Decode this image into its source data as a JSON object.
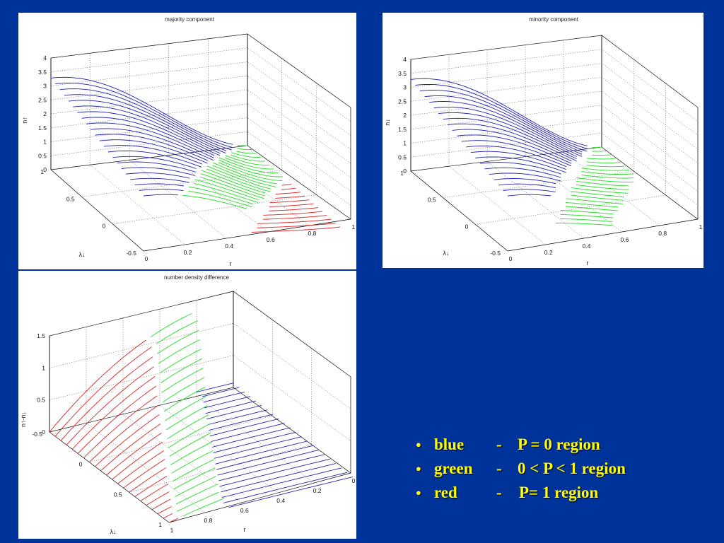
{
  "chart_data": [
    {
      "type": "surface-3d",
      "title": "majority component",
      "xlabel": "r",
      "ylabel": "λ↓",
      "zlabel": "n↑",
      "x_ticks": [
        "0",
        "0.2",
        "0.4",
        "0.6",
        "0.8",
        "1"
      ],
      "y_ticks": [
        "-0.5",
        "0",
        "0.5",
        "1"
      ],
      "z_ticks": [
        "0",
        "0.5",
        "1",
        "1.5",
        "2",
        "2.5",
        "3",
        "3.5",
        "4"
      ],
      "xlim": [
        0,
        1
      ],
      "ylim": [
        -0.5,
        1
      ],
      "zlim": [
        0,
        4
      ],
      "grid": true,
      "series": [
        {
          "region": "blue",
          "color": "#1f1fb8"
        },
        {
          "region": "green",
          "color": "#22dd22"
        },
        {
          "region": "red",
          "color": "#dd2222"
        }
      ]
    },
    {
      "type": "surface-3d",
      "title": "minority component",
      "xlabel": "r",
      "ylabel": "λ↓",
      "zlabel": "n↓",
      "x_ticks": [
        "0",
        "0.2",
        "0.4",
        "0.6",
        "0.8",
        "1"
      ],
      "y_ticks": [
        "-0.5",
        "0",
        "0.5",
        "1"
      ],
      "z_ticks": [
        "0",
        "0.5",
        "1",
        "1.5",
        "2",
        "2.5",
        "3",
        "3.5",
        "4"
      ],
      "xlim": [
        0,
        1
      ],
      "ylim": [
        -0.5,
        1
      ],
      "zlim": [
        0,
        4
      ],
      "grid": true,
      "series": [
        {
          "region": "blue",
          "color": "#1f1fb8"
        },
        {
          "region": "green",
          "color": "#22dd22"
        }
      ]
    },
    {
      "type": "surface-3d",
      "title": "number density difference",
      "xlabel": "r",
      "ylabel": "λ↓",
      "zlabel": "n↑-n↓",
      "x_ticks": [
        "0",
        "0.2",
        "0.4",
        "0.6",
        "0.8",
        "1"
      ],
      "y_ticks": [
        "-0.5",
        "0",
        "0.5",
        "1"
      ],
      "z_ticks": [
        "0",
        "0.5",
        "1",
        "1.5"
      ],
      "xlim": [
        0,
        1
      ],
      "ylim": [
        -0.5,
        1
      ],
      "zlim": [
        0,
        1.5
      ],
      "grid": true,
      "series": [
        {
          "region": "red",
          "color": "#dd2222"
        },
        {
          "region": "green",
          "color": "#22dd22"
        },
        {
          "region": "blue",
          "color": "#1f1fb8"
        }
      ]
    }
  ],
  "legend": [
    {
      "label": "blue",
      "dash": "-",
      "desc": "P = 0 region"
    },
    {
      "label": "green",
      "dash": "-",
      "desc": "0 < P < 1 region"
    },
    {
      "label": "red",
      "dash": "-",
      "desc": "P= 1 region"
    }
  ]
}
